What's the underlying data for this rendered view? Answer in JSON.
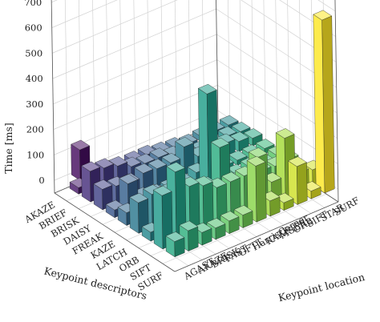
{
  "chart_data": {
    "type": "bar3d",
    "title": "",
    "zlabel": "Time [ms]",
    "xlabel": "Keypoint descriptors",
    "ylabel": "Keypoint location",
    "zlim": [
      -50,
      750
    ],
    "z_ticks": [
      0,
      100,
      200,
      300,
      400,
      500,
      600,
      700
    ],
    "descriptors": [
      "AKAZE",
      "BRIEF",
      "BRISK",
      "DAISY",
      "FREAK",
      "KAZE",
      "LATCH",
      "ORB",
      "SIFT",
      "SURF"
    ],
    "locations": [
      "AGAST",
      "AKAZE",
      "BRISK",
      "FAST",
      "GFTT",
      "HarrisCorner",
      "KAZE",
      "MSER",
      "ORB",
      "SIFT",
      "STAR",
      "SURF"
    ],
    "bars": [
      {
        "descriptor": "AKAZE",
        "location": "AKAZE",
        "value": 120
      },
      {
        "descriptor": "BRIEF",
        "location": "AGAST",
        "value": 25
      },
      {
        "descriptor": "BRIEF",
        "location": "AKAZE",
        "value": 60
      },
      {
        "descriptor": "BRIEF",
        "location": "BRISK",
        "value": 50
      },
      {
        "descriptor": "BRIEF",
        "location": "FAST",
        "value": 25
      },
      {
        "descriptor": "BRIEF",
        "location": "GFTT",
        "value": 40
      },
      {
        "descriptor": "BRIEF",
        "location": "HarrisCorner",
        "value": 40
      },
      {
        "descriptor": "BRIEF",
        "location": "KAZE",
        "value": 30
      },
      {
        "descriptor": "BRIEF",
        "location": "MSER",
        "value": 25
      },
      {
        "descriptor": "BRIEF",
        "location": "ORB",
        "value": 15
      },
      {
        "descriptor": "BRIEF",
        "location": "SIFT",
        "value": 20
      },
      {
        "descriptor": "BRIEF",
        "location": "STAR",
        "value": 20
      },
      {
        "descriptor": "BRIEF",
        "location": "SURF",
        "value": 20
      },
      {
        "descriptor": "BRISK",
        "location": "AGAST",
        "value": 120
      },
      {
        "descriptor": "BRISK",
        "location": "AKAZE",
        "value": 110
      },
      {
        "descriptor": "BRISK",
        "location": "BRISK",
        "value": 95
      },
      {
        "descriptor": "BRISK",
        "location": "FAST",
        "value": 70
      },
      {
        "descriptor": "BRISK",
        "location": "GFTT",
        "value": 60
      },
      {
        "descriptor": "BRISK",
        "location": "HarrisCorner",
        "value": 60
      },
      {
        "descriptor": "BRISK",
        "location": "KAZE",
        "value": 45
      },
      {
        "descriptor": "BRISK",
        "location": "MSER",
        "value": 35
      },
      {
        "descriptor": "BRISK",
        "location": "ORB",
        "value": 20
      },
      {
        "descriptor": "BRISK",
        "location": "SIFT",
        "value": 25
      },
      {
        "descriptor": "BRISK",
        "location": "STAR",
        "value": 30
      },
      {
        "descriptor": "BRISK",
        "location": "SURF",
        "value": 25
      },
      {
        "descriptor": "DAISY",
        "location": "AGAST",
        "value": 80
      },
      {
        "descriptor": "DAISY",
        "location": "AKAZE",
        "value": 70
      },
      {
        "descriptor": "DAISY",
        "location": "BRISK",
        "value": 60
      },
      {
        "descriptor": "DAISY",
        "location": "FAST",
        "value": 75
      },
      {
        "descriptor": "DAISY",
        "location": "GFTT",
        "value": 70
      },
      {
        "descriptor": "DAISY",
        "location": "HarrisCorner",
        "value": 70
      },
      {
        "descriptor": "DAISY",
        "location": "KAZE",
        "value": 110
      },
      {
        "descriptor": "DAISY",
        "location": "MSER",
        "value": 50
      },
      {
        "descriptor": "DAISY",
        "location": "ORB",
        "value": 35
      },
      {
        "descriptor": "DAISY",
        "location": "SIFT",
        "value": 55
      },
      {
        "descriptor": "DAISY",
        "location": "STAR",
        "value": 40
      },
      {
        "descriptor": "DAISY",
        "location": "SURF",
        "value": 30
      },
      {
        "descriptor": "FREAK",
        "location": "AGAST",
        "value": 30
      },
      {
        "descriptor": "FREAK",
        "location": "AKAZE",
        "value": 110
      },
      {
        "descriptor": "FREAK",
        "location": "BRISK",
        "value": 35
      },
      {
        "descriptor": "FREAK",
        "location": "FAST",
        "value": 25
      },
      {
        "descriptor": "FREAK",
        "location": "GFTT",
        "value": 25
      },
      {
        "descriptor": "FREAK",
        "location": "HarrisCorner",
        "value": 25
      },
      {
        "descriptor": "FREAK",
        "location": "KAZE",
        "value": 40
      },
      {
        "descriptor": "FREAK",
        "location": "MSER",
        "value": 20
      },
      {
        "descriptor": "FREAK",
        "location": "ORB",
        "value": 20
      },
      {
        "descriptor": "FREAK",
        "location": "SIFT",
        "value": 20
      },
      {
        "descriptor": "FREAK",
        "location": "STAR",
        "value": 20
      },
      {
        "descriptor": "FREAK",
        "location": "SURF",
        "value": 20
      },
      {
        "descriptor": "KAZE",
        "location": "AGAST",
        "value": 50
      },
      {
        "descriptor": "KAZE",
        "location": "AKAZE",
        "value": 60
      },
      {
        "descriptor": "KAZE",
        "location": "BRISK",
        "value": 40
      },
      {
        "descriptor": "KAZE",
        "location": "FAST",
        "value": 35
      },
      {
        "descriptor": "KAZE",
        "location": "GFTT",
        "value": 30
      },
      {
        "descriptor": "KAZE",
        "location": "HarrisCorner",
        "value": 30
      },
      {
        "descriptor": "KAZE",
        "location": "KAZE",
        "value": 380
      },
      {
        "descriptor": "KAZE",
        "location": "MSER",
        "value": 20
      },
      {
        "descriptor": "KAZE",
        "location": "ORB",
        "value": 20
      },
      {
        "descriptor": "KAZE",
        "location": "SIFT",
        "value": 25
      },
      {
        "descriptor": "KAZE",
        "location": "STAR",
        "value": 20
      },
      {
        "descriptor": "KAZE",
        "location": "SURF",
        "value": 25
      },
      {
        "descriptor": "LATCH",
        "location": "AGAST",
        "value": 120
      },
      {
        "descriptor": "LATCH",
        "location": "AKAZE",
        "value": 130
      },
      {
        "descriptor": "LATCH",
        "location": "BRISK",
        "value": 110
      },
      {
        "descriptor": "LATCH",
        "location": "FAST",
        "value": 90
      },
      {
        "descriptor": "LATCH",
        "location": "GFTT",
        "value": 70
      },
      {
        "descriptor": "LATCH",
        "location": "HarrisCorner",
        "value": 70
      },
      {
        "descriptor": "LATCH",
        "location": "KAZE",
        "value": 200
      },
      {
        "descriptor": "LATCH",
        "location": "MSER",
        "value": 40
      },
      {
        "descriptor": "LATCH",
        "location": "ORB",
        "value": 30
      },
      {
        "descriptor": "LATCH",
        "location": "SIFT",
        "value": 40
      },
      {
        "descriptor": "LATCH",
        "location": "STAR",
        "value": 35
      },
      {
        "descriptor": "LATCH",
        "location": "SURF",
        "value": 40
      },
      {
        "descriptor": "ORB",
        "location": "AGAST",
        "value": 35
      },
      {
        "descriptor": "ORB",
        "location": "AKAZE",
        "value": 90
      },
      {
        "descriptor": "ORB",
        "location": "BRISK",
        "value": 25
      },
      {
        "descriptor": "ORB",
        "location": "FAST",
        "value": 25
      },
      {
        "descriptor": "ORB",
        "location": "GFTT",
        "value": 40
      },
      {
        "descriptor": "ORB",
        "location": "HarrisCorner",
        "value": 40
      },
      {
        "descriptor": "ORB",
        "location": "KAZE",
        "value": 30
      },
      {
        "descriptor": "ORB",
        "location": "MSER",
        "value": 25
      },
      {
        "descriptor": "ORB",
        "location": "ORB",
        "value": 15
      },
      {
        "descriptor": "ORB",
        "location": "SIFT",
        "value": 20
      },
      {
        "descriptor": "ORB",
        "location": "STAR",
        "value": 20
      },
      {
        "descriptor": "ORB",
        "location": "SURF",
        "value": 20
      },
      {
        "descriptor": "SIFT",
        "location": "AGAST",
        "value": 210
      },
      {
        "descriptor": "SIFT",
        "location": "AKAZE",
        "value": 280
      },
      {
        "descriptor": "SIFT",
        "location": "BRISK",
        "value": 200
      },
      {
        "descriptor": "SIFT",
        "location": "FAST",
        "value": 180
      },
      {
        "descriptor": "SIFT",
        "location": "GFTT",
        "value": 150
      },
      {
        "descriptor": "SIFT",
        "location": "HarrisCorner",
        "value": 150
      },
      {
        "descriptor": "SIFT",
        "location": "KAZE",
        "value": 150
      },
      {
        "descriptor": "SIFT",
        "location": "MSER",
        "value": 200
      },
      {
        "descriptor": "SIFT",
        "location": "ORB",
        "value": 80
      },
      {
        "descriptor": "SIFT",
        "location": "SIFT",
        "value": 230
      },
      {
        "descriptor": "SIFT",
        "location": "STAR",
        "value": 70
      },
      {
        "descriptor": "SIFT",
        "location": "SURF",
        "value": 60
      },
      {
        "descriptor": "SURF",
        "location": "AGAST",
        "value": 60
      },
      {
        "descriptor": "SURF",
        "location": "AKAZE",
        "value": 80
      },
      {
        "descriptor": "SURF",
        "location": "BRISK",
        "value": 50
      },
      {
        "descriptor": "SURF",
        "location": "FAST",
        "value": 45
      },
      {
        "descriptor": "SURF",
        "location": "GFTT",
        "value": 50
      },
      {
        "descriptor": "SURF",
        "location": "HarrisCorner",
        "value": 50
      },
      {
        "descriptor": "SURF",
        "location": "KAZE",
        "value": 220
      },
      {
        "descriptor": "SURF",
        "location": "MSER",
        "value": 60
      },
      {
        "descriptor": "SURF",
        "location": "ORB",
        "value": 30
      },
      {
        "descriptor": "SURF",
        "location": "SIFT",
        "value": 150
      },
      {
        "descriptor": "SURF",
        "location": "STAR",
        "value": 30
      },
      {
        "descriptor": "SURF",
        "location": "SURF",
        "value": 680
      }
    ],
    "grid": true,
    "colormap": [
      "#440154",
      "#482878",
      "#3e4989",
      "#31688e",
      "#26828e",
      "#1f9e89",
      "#35b779",
      "#6ece58",
      "#b5de2b",
      "#fde725"
    ]
  }
}
